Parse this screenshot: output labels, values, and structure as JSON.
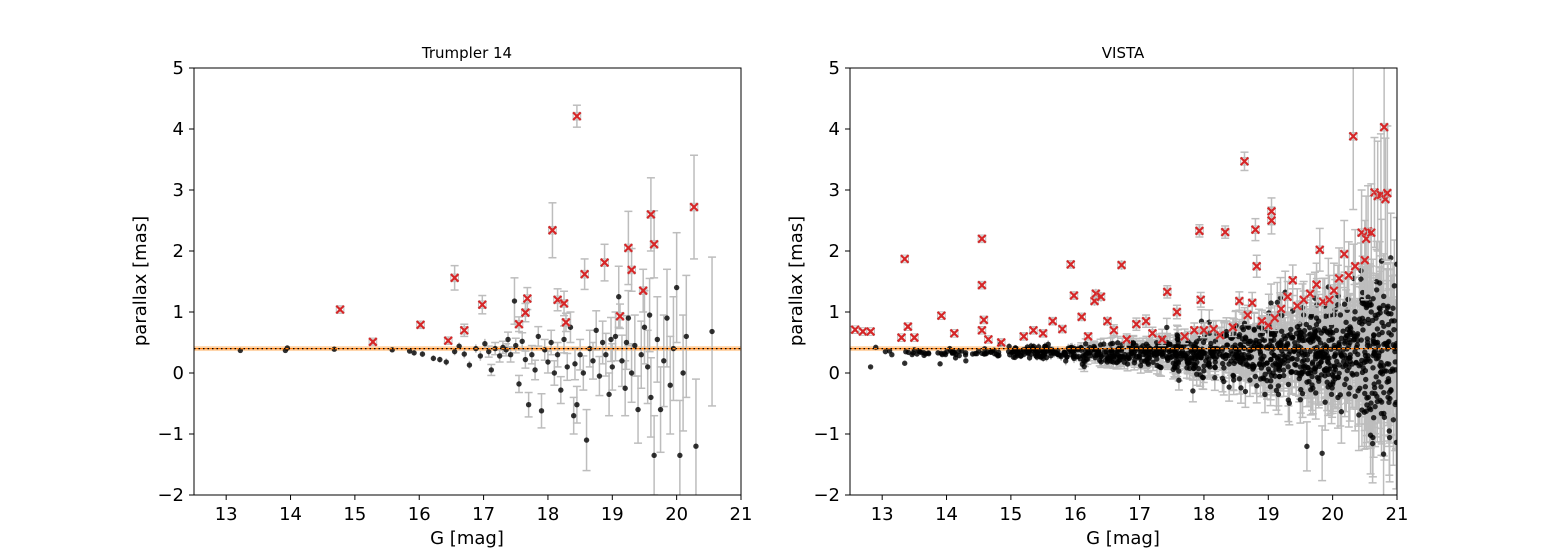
{
  "chart_data": [
    {
      "type": "scatter",
      "title": "Trumpler 14",
      "xlabel": "G [mag]",
      "ylabel": "parallax [mas]",
      "xlim": [
        12.5,
        21
      ],
      "ylim": [
        -2,
        5
      ],
      "xticks": [
        "13",
        "14",
        "15",
        "16",
        "17",
        "18",
        "19",
        "20",
        "21"
      ],
      "yticks": [
        "−2",
        "−1",
        "0",
        "1",
        "2",
        "3",
        "4",
        "5"
      ],
      "xtick_values": [
        13,
        14,
        15,
        16,
        17,
        18,
        19,
        20,
        21
      ],
      "ytick_values": [
        -2,
        -1,
        0,
        1,
        2,
        3,
        4,
        5
      ],
      "grid": false,
      "reference_parallax": 0.4,
      "reference_band": [
        0.36,
        0.44
      ],
      "colors": {
        "members": "#000000",
        "outliers": "#d62728",
        "errorbar": "#bdbdbd",
        "band": "#ffb366",
        "refline": "#ff7f0e"
      },
      "members": [
        {
          "g": 13.22,
          "p": 0.37,
          "e": 0.02
        },
        {
          "g": 13.92,
          "p": 0.37,
          "e": 0.02
        },
        {
          "g": 13.95,
          "p": 0.41,
          "e": 0.02
        },
        {
          "g": 14.68,
          "p": 0.39,
          "e": 0.03
        },
        {
          "g": 15.58,
          "p": 0.38,
          "e": 0.03
        },
        {
          "g": 15.85,
          "p": 0.36,
          "e": 0.04
        },
        {
          "g": 15.92,
          "p": 0.33,
          "e": 0.04
        },
        {
          "g": 16.05,
          "p": 0.31,
          "e": 0.05
        },
        {
          "g": 16.22,
          "p": 0.24,
          "e": 0.05
        },
        {
          "g": 16.32,
          "p": 0.22,
          "e": 0.05
        },
        {
          "g": 16.42,
          "p": 0.18,
          "e": 0.06
        },
        {
          "g": 16.55,
          "p": 0.35,
          "e": 0.06
        },
        {
          "g": 16.62,
          "p": 0.44,
          "e": 0.06
        },
        {
          "g": 16.7,
          "p": 0.31,
          "e": 0.07
        },
        {
          "g": 16.78,
          "p": 0.13,
          "e": 0.07
        },
        {
          "g": 16.88,
          "p": 0.4,
          "e": 0.07
        },
        {
          "g": 16.95,
          "p": 0.28,
          "e": 0.08
        },
        {
          "g": 17.02,
          "p": 0.48,
          "e": 0.08
        },
        {
          "g": 17.08,
          "p": 0.35,
          "e": 0.09
        },
        {
          "g": 17.12,
          "p": 0.05,
          "e": 0.09
        },
        {
          "g": 17.18,
          "p": 0.4,
          "e": 0.1
        },
        {
          "g": 17.25,
          "p": 0.28,
          "e": 0.1
        },
        {
          "g": 17.3,
          "p": 0.42,
          "e": 0.1
        },
        {
          "g": 17.38,
          "p": 0.55,
          "e": 0.12
        },
        {
          "g": 17.42,
          "p": 0.3,
          "e": 0.12
        },
        {
          "g": 17.48,
          "p": 1.18,
          "e": 0.38
        },
        {
          "g": 17.5,
          "p": 0.45,
          "e": 0.12
        },
        {
          "g": 17.55,
          "p": -0.18,
          "e": 0.14
        },
        {
          "g": 17.6,
          "p": 0.52,
          "e": 0.14
        },
        {
          "g": 17.65,
          "p": 0.22,
          "e": 0.14
        },
        {
          "g": 17.7,
          "p": -0.52,
          "e": 0.2
        },
        {
          "g": 17.75,
          "p": 0.3,
          "e": 0.15
        },
        {
          "g": 17.8,
          "p": 0.05,
          "e": 0.16
        },
        {
          "g": 17.85,
          "p": 0.6,
          "e": 0.16
        },
        {
          "g": 17.9,
          "p": -0.62,
          "e": 0.28
        },
        {
          "g": 17.95,
          "p": 0.38,
          "e": 0.17
        },
        {
          "g": 18.0,
          "p": 0.18,
          "e": 0.18
        },
        {
          "g": 18.05,
          "p": 0.5,
          "e": 0.2
        },
        {
          "g": 18.1,
          "p": 0.0,
          "e": 0.2
        },
        {
          "g": 18.15,
          "p": 0.3,
          "e": 0.2
        },
        {
          "g": 18.2,
          "p": -0.28,
          "e": 0.22
        },
        {
          "g": 18.25,
          "p": 0.55,
          "e": 0.22
        },
        {
          "g": 18.3,
          "p": 0.1,
          "e": 0.22
        },
        {
          "g": 18.35,
          "p": 0.75,
          "e": 0.25
        },
        {
          "g": 18.4,
          "p": -0.7,
          "e": 0.3
        },
        {
          "g": 18.45,
          "p": -0.52,
          "e": 0.3
        },
        {
          "g": 18.5,
          "p": 0.3,
          "e": 0.25
        },
        {
          "g": 18.55,
          "p": 0.0,
          "e": 0.28
        },
        {
          "g": 18.6,
          "p": -1.1,
          "e": 0.5
        },
        {
          "g": 18.65,
          "p": 0.4,
          "e": 0.3
        },
        {
          "g": 18.7,
          "p": 0.2,
          "e": 0.3
        },
        {
          "g": 18.75,
          "p": 0.7,
          "e": 0.32
        },
        {
          "g": 18.8,
          "p": -0.05,
          "e": 0.32
        },
        {
          "g": 18.85,
          "p": 0.5,
          "e": 0.35
        },
        {
          "g": 18.9,
          "p": 0.3,
          "e": 0.35
        },
        {
          "g": 18.95,
          "p": -0.35,
          "e": 0.35
        },
        {
          "g": 19.0,
          "p": 0.1,
          "e": 0.38
        },
        {
          "g": 19.05,
          "p": 0.6,
          "e": 0.4
        },
        {
          "g": 19.1,
          "p": 1.25,
          "e": 0.5
        },
        {
          "g": 19.15,
          "p": 0.2,
          "e": 0.42
        },
        {
          "g": 19.2,
          "p": -0.25,
          "e": 0.45
        },
        {
          "g": 19.25,
          "p": 0.9,
          "e": 0.45
        },
        {
          "g": 19.3,
          "p": 0.0,
          "e": 0.48
        },
        {
          "g": 19.35,
          "p": 0.45,
          "e": 0.5
        },
        {
          "g": 19.4,
          "p": -0.6,
          "e": 0.55
        },
        {
          "g": 19.45,
          "p": 0.3,
          "e": 0.55
        },
        {
          "g": 19.5,
          "p": 0.75,
          "e": 0.6
        },
        {
          "g": 19.55,
          "p": 0.1,
          "e": 0.6
        },
        {
          "g": 19.6,
          "p": -0.4,
          "e": 0.65
        },
        {
          "g": 19.65,
          "p": -1.35,
          "e": 0.65
        },
        {
          "g": 19.7,
          "p": 0.55,
          "e": 0.7
        },
        {
          "g": 19.75,
          "p": -0.6,
          "e": 0.7
        },
        {
          "g": 19.8,
          "p": 0.2,
          "e": 0.75
        },
        {
          "g": 19.85,
          "p": 0.9,
          "e": 0.8
        },
        {
          "g": 19.9,
          "p": -0.2,
          "e": 0.8
        },
        {
          "g": 19.95,
          "p": 0.4,
          "e": 0.85
        },
        {
          "g": 20.0,
          "p": 1.4,
          "e": 0.9
        },
        {
          "g": 20.05,
          "p": -1.35,
          "e": 0.9
        },
        {
          "g": 20.1,
          "p": 0.0,
          "e": 0.95
        },
        {
          "g": 20.15,
          "p": 0.6,
          "e": 1.0
        },
        {
          "g": 20.3,
          "p": -1.2,
          "e": 1.1
        },
        {
          "g": 20.55,
          "p": 0.68,
          "e": 1.22
        },
        {
          "g": 19.58,
          "p": 0.95,
          "e": 0.6
        },
        {
          "g": 18.98,
          "p": 0.55,
          "e": 0.36
        },
        {
          "g": 17.35,
          "p": 0.38,
          "e": 0.1
        },
        {
          "g": 18.42,
          "p": 0.15,
          "e": 0.26
        },
        {
          "g": 19.22,
          "p": 0.5,
          "e": 0.44
        }
      ],
      "outliers": [
        {
          "g": 14.77,
          "p": 1.04,
          "e": 0.05
        },
        {
          "g": 15.28,
          "p": 0.51,
          "e": 0.05
        },
        {
          "g": 16.02,
          "p": 0.79,
          "e": 0.06
        },
        {
          "g": 16.45,
          "p": 0.53,
          "e": 0.06
        },
        {
          "g": 16.55,
          "p": 1.56,
          "e": 0.2
        },
        {
          "g": 16.7,
          "p": 0.7,
          "e": 0.1
        },
        {
          "g": 16.98,
          "p": 1.12,
          "e": 0.15
        },
        {
          "g": 17.55,
          "p": 0.8,
          "e": 0.12
        },
        {
          "g": 17.65,
          "p": 0.99,
          "e": 0.15
        },
        {
          "g": 17.68,
          "p": 1.22,
          "e": 0.18
        },
        {
          "g": 18.07,
          "p": 2.34,
          "e": 0.45
        },
        {
          "g": 18.15,
          "p": 1.2,
          "e": 0.18
        },
        {
          "g": 18.25,
          "p": 1.14,
          "e": 0.2
        },
        {
          "g": 18.28,
          "p": 0.83,
          "e": 0.15
        },
        {
          "g": 18.45,
          "p": 4.21,
          "e": 0.18
        },
        {
          "g": 18.57,
          "p": 1.62,
          "e": 0.25
        },
        {
          "g": 18.88,
          "p": 1.81,
          "e": 0.3
        },
        {
          "g": 19.12,
          "p": 0.93,
          "e": 0.2
        },
        {
          "g": 19.25,
          "p": 2.05,
          "e": 0.6
        },
        {
          "g": 19.3,
          "p": 1.69,
          "e": 0.35
        },
        {
          "g": 19.48,
          "p": 1.35,
          "e": 0.35
        },
        {
          "g": 19.6,
          "p": 2.6,
          "e": 0.6
        },
        {
          "g": 19.65,
          "p": 2.11,
          "e": 0.55
        },
        {
          "g": 20.27,
          "p": 2.72,
          "e": 0.85
        }
      ]
    },
    {
      "type": "scatter",
      "title": "VISTA",
      "xlabel": "G [mag]",
      "ylabel": "parallax [mas]",
      "xlim": [
        12.5,
        21
      ],
      "ylim": [
        -2,
        5
      ],
      "xticks": [
        "13",
        "14",
        "15",
        "16",
        "17",
        "18",
        "19",
        "20",
        "21"
      ],
      "yticks": [
        "−2",
        "−1",
        "0",
        "1",
        "2",
        "3",
        "4",
        "5"
      ],
      "xtick_values": [
        13,
        14,
        15,
        16,
        17,
        18,
        19,
        20,
        21
      ],
      "ytick_values": [
        -2,
        -1,
        0,
        1,
        2,
        3,
        4,
        5
      ],
      "grid": false,
      "reference_parallax": 0.4,
      "reference_band": [
        0.36,
        0.44
      ],
      "colors": {
        "members": "#000000",
        "outliers": "#d62728",
        "errorbar": "#bdbdbd",
        "band": "#ffb366",
        "refline": "#ff7f0e"
      },
      "members_distribution": {
        "description": "dense cloud of cluster members around parallax 0.3 mas, scatter grows with G",
        "count": 1200,
        "g_range": [
          12.7,
          21
        ],
        "center_parallax": 0.33
      },
      "members": [
        {
          "g": 12.82,
          "p": 0.1,
          "e": 0.02
        },
        {
          "g": 12.9,
          "p": 0.42,
          "e": 0.02
        },
        {
          "g": 13.05,
          "p": 0.35,
          "e": 0.02
        },
        {
          "g": 13.15,
          "p": 0.3,
          "e": 0.02
        },
        {
          "g": 13.35,
          "p": 0.16,
          "e": 0.02
        },
        {
          "g": 13.5,
          "p": 0.38,
          "e": 0.02
        },
        {
          "g": 13.9,
          "p": 0.15,
          "e": 0.03
        },
        {
          "g": 14.05,
          "p": 0.4,
          "e": 0.03
        },
        {
          "g": 14.3,
          "p": 0.2,
          "e": 0.03
        }
      ],
      "outliers": [
        {
          "g": 12.58,
          "p": 0.71,
          "e": 0.04
        },
        {
          "g": 12.7,
          "p": 0.68,
          "e": 0.04
        },
        {
          "g": 12.82,
          "p": 0.68,
          "e": 0.04
        },
        {
          "g": 13.35,
          "p": 1.87,
          "e": 0.04
        },
        {
          "g": 13.4,
          "p": 0.76,
          "e": 0.04
        },
        {
          "g": 13.3,
          "p": 0.58,
          "e": 0.04
        },
        {
          "g": 13.5,
          "p": 0.58,
          "e": 0.04
        },
        {
          "g": 13.92,
          "p": 0.94,
          "e": 0.04
        },
        {
          "g": 14.12,
          "p": 0.65,
          "e": 0.04
        },
        {
          "g": 14.55,
          "p": 2.2,
          "e": 0.05
        },
        {
          "g": 14.55,
          "p": 1.44,
          "e": 0.05
        },
        {
          "g": 14.58,
          "p": 0.87,
          "e": 0.05
        },
        {
          "g": 14.55,
          "p": 0.7,
          "e": 0.05
        },
        {
          "g": 14.65,
          "p": 0.55,
          "e": 0.05
        },
        {
          "g": 14.85,
          "p": 0.5,
          "e": 0.05
        },
        {
          "g": 15.2,
          "p": 0.6,
          "e": 0.06
        },
        {
          "g": 15.35,
          "p": 0.7,
          "e": 0.06
        },
        {
          "g": 15.5,
          "p": 0.65,
          "e": 0.06
        },
        {
          "g": 15.65,
          "p": 0.85,
          "e": 0.06
        },
        {
          "g": 15.8,
          "p": 0.72,
          "e": 0.07
        },
        {
          "g": 15.93,
          "p": 1.78,
          "e": 0.06
        },
        {
          "g": 15.98,
          "p": 1.27,
          "e": 0.07
        },
        {
          "g": 16.1,
          "p": 0.92,
          "e": 0.07
        },
        {
          "g": 16.2,
          "p": 0.6,
          "e": 0.07
        },
        {
          "g": 16.3,
          "p": 1.18,
          "e": 0.08
        },
        {
          "g": 16.32,
          "p": 1.3,
          "e": 0.08
        },
        {
          "g": 16.4,
          "p": 1.25,
          "e": 0.08
        },
        {
          "g": 16.5,
          "p": 0.85,
          "e": 0.08
        },
        {
          "g": 16.6,
          "p": 0.7,
          "e": 0.09
        },
        {
          "g": 16.72,
          "p": 1.77,
          "e": 0.08
        },
        {
          "g": 16.8,
          "p": 0.55,
          "e": 0.09
        },
        {
          "g": 16.95,
          "p": 0.8,
          "e": 0.1
        },
        {
          "g": 17.1,
          "p": 0.85,
          "e": 0.1
        },
        {
          "g": 17.2,
          "p": 0.65,
          "e": 0.1
        },
        {
          "g": 17.35,
          "p": 0.55,
          "e": 0.1
        },
        {
          "g": 17.43,
          "p": 1.33,
          "e": 0.1
        },
        {
          "g": 17.58,
          "p": 1.0,
          "e": 0.11
        },
        {
          "g": 17.7,
          "p": 0.6,
          "e": 0.12
        },
        {
          "g": 17.85,
          "p": 0.7,
          "e": 0.12
        },
        {
          "g": 17.93,
          "p": 2.33,
          "e": 0.1
        },
        {
          "g": 17.95,
          "p": 1.2,
          "e": 0.12
        },
        {
          "g": 18.0,
          "p": 0.7,
          "e": 0.12
        },
        {
          "g": 18.15,
          "p": 0.72,
          "e": 0.13
        },
        {
          "g": 18.25,
          "p": 0.62,
          "e": 0.13
        },
        {
          "g": 18.33,
          "p": 2.31,
          "e": 0.1
        },
        {
          "g": 18.45,
          "p": 0.75,
          "e": 0.15
        },
        {
          "g": 18.55,
          "p": 1.18,
          "e": 0.15
        },
        {
          "g": 18.63,
          "p": 3.47,
          "e": 0.15
        },
        {
          "g": 18.68,
          "p": 0.95,
          "e": 0.16
        },
        {
          "g": 18.75,
          "p": 1.15,
          "e": 0.17
        },
        {
          "g": 18.8,
          "p": 2.35,
          "e": 0.18
        },
        {
          "g": 18.82,
          "p": 1.75,
          "e": 0.18
        },
        {
          "g": 18.9,
          "p": 0.85,
          "e": 0.18
        },
        {
          "g": 19.0,
          "p": 0.78,
          "e": 0.2
        },
        {
          "g": 19.05,
          "p": 2.65,
          "e": 0.22
        },
        {
          "g": 19.05,
          "p": 2.5,
          "e": 0.22
        },
        {
          "g": 19.1,
          "p": 0.9,
          "e": 0.2
        },
        {
          "g": 19.2,
          "p": 1.05,
          "e": 0.22
        },
        {
          "g": 19.3,
          "p": 1.25,
          "e": 0.25
        },
        {
          "g": 19.38,
          "p": 1.52,
          "e": 0.25
        },
        {
          "g": 19.45,
          "p": 1.1,
          "e": 0.28
        },
        {
          "g": 19.55,
          "p": 1.2,
          "e": 0.3
        },
        {
          "g": 19.65,
          "p": 1.3,
          "e": 0.32
        },
        {
          "g": 19.75,
          "p": 1.45,
          "e": 0.35
        },
        {
          "g": 19.8,
          "p": 2.02,
          "e": 0.35
        },
        {
          "g": 19.85,
          "p": 1.17,
          "e": 0.38
        },
        {
          "g": 19.95,
          "p": 1.2,
          "e": 0.4
        },
        {
          "g": 20.02,
          "p": 1.35,
          "e": 0.45
        },
        {
          "g": 20.1,
          "p": 1.55,
          "e": 0.5
        },
        {
          "g": 20.18,
          "p": 1.95,
          "e": 0.55
        },
        {
          "g": 20.25,
          "p": 1.6,
          "e": 0.55
        },
        {
          "g": 20.32,
          "p": 3.88,
          "e": 1.2
        },
        {
          "g": 20.35,
          "p": 1.75,
          "e": 0.6
        },
        {
          "g": 20.45,
          "p": 2.3,
          "e": 0.7
        },
        {
          "g": 20.5,
          "p": 1.85,
          "e": 0.65
        },
        {
          "g": 20.52,
          "p": 2.2,
          "e": 0.7
        },
        {
          "g": 20.55,
          "p": 2.32,
          "e": 0.75
        },
        {
          "g": 20.6,
          "p": 2.3,
          "e": 0.8
        },
        {
          "g": 20.65,
          "p": 2.96,
          "e": 0.9
        },
        {
          "g": 20.7,
          "p": 2.9,
          "e": 0.9
        },
        {
          "g": 20.75,
          "p": 2.92,
          "e": 1.0
        },
        {
          "g": 20.8,
          "p": 4.03,
          "e": 1.2
        },
        {
          "g": 20.82,
          "p": 2.85,
          "e": 1.0
        },
        {
          "g": 20.85,
          "p": 2.95,
          "e": 1.1
        }
      ]
    }
  ]
}
